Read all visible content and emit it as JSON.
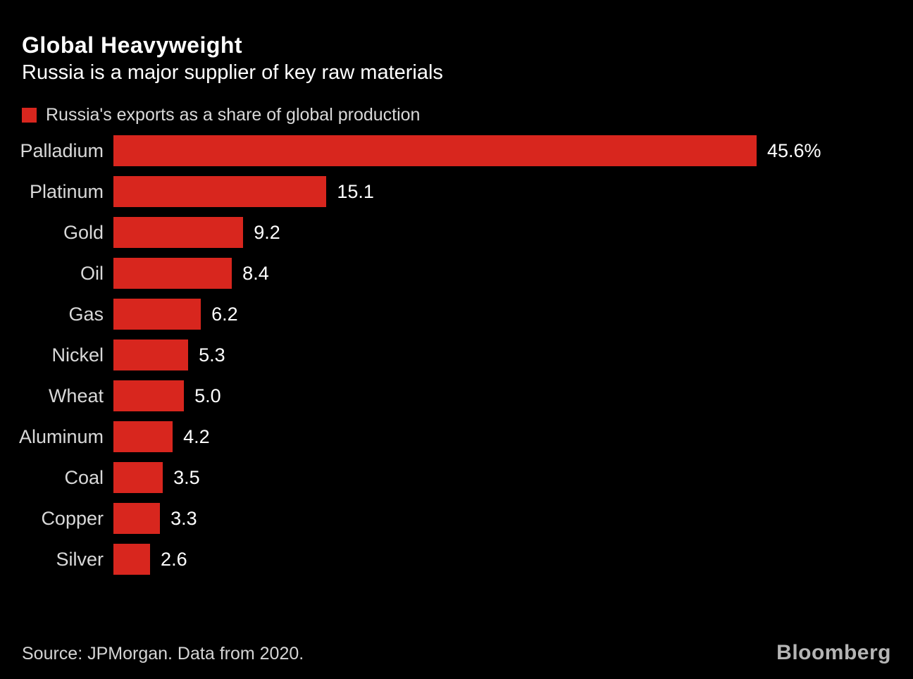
{
  "header": {
    "title": "Global Heavyweight",
    "subtitle": "Russia is a major supplier of key raw materials"
  },
  "legend": {
    "label": "Russia's exports as a share of global production"
  },
  "chart_data": {
    "type": "bar",
    "orientation": "horizontal",
    "title": "Global Heavyweight",
    "subtitle": "Russia is a major supplier of key raw materials",
    "series_name": "Russia's exports as a share of global production",
    "categories": [
      "Palladium",
      "Platinum",
      "Gold",
      "Oil",
      "Gas",
      "Nickel",
      "Wheat",
      "Aluminum",
      "Coal",
      "Copper",
      "Silver"
    ],
    "values": [
      45.6,
      15.1,
      9.2,
      8.4,
      6.2,
      5.3,
      5.0,
      4.2,
      3.5,
      3.3,
      2.6
    ],
    "value_labels": [
      "45.6%",
      "15.1",
      "9.2",
      "8.4",
      "6.2",
      "5.3",
      "5.0",
      "4.2",
      "3.5",
      "3.3",
      "2.6"
    ],
    "unit": "%",
    "xlim": [
      0,
      45.6
    ],
    "grid": false,
    "legend_position": "top-left"
  },
  "footer": {
    "source": "Source: JPMorgan. Data from 2020.",
    "brand": "Bloomberg"
  },
  "colors": {
    "background": "#000000",
    "bar": "#d8261e",
    "title": "#ffffff",
    "label": "#d9d9d9",
    "value": "#ffffff",
    "source": "#d4d4d4",
    "brand": "#b5b5b5"
  }
}
